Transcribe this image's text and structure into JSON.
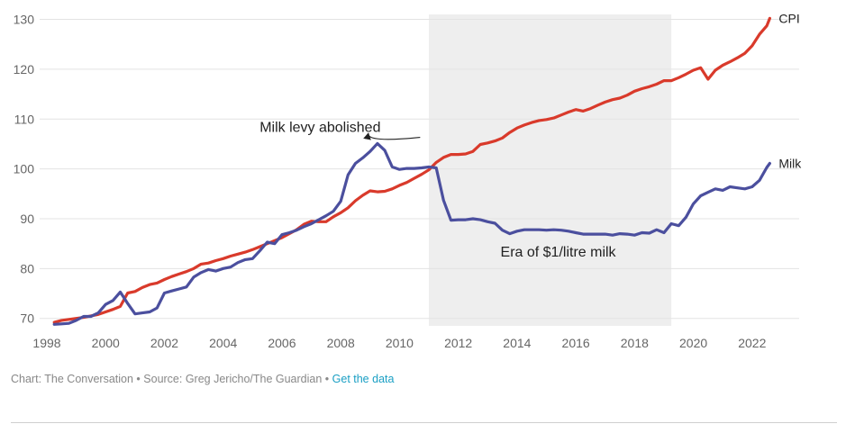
{
  "footer": {
    "credit": "Chart: The Conversation",
    "separator": " • ",
    "source": "Source: Greg Jericho/The Guardian",
    "link": "Get the data"
  },
  "colors": {
    "cpi": "#d93a2b",
    "milk": "#4b4f9e",
    "shade": "#eeeeee",
    "grid": "#e3e3e3"
  },
  "chart_data": {
    "type": "line",
    "x_ticks": [
      1998,
      2000,
      2002,
      2004,
      2006,
      2008,
      2010,
      2012,
      2014,
      2016,
      2018,
      2020,
      2022
    ],
    "y_ticks": [
      70,
      80,
      90,
      100,
      110,
      120,
      130
    ],
    "xlim": [
      1998,
      2023.6
    ],
    "ylim": [
      68.5,
      131
    ],
    "grid": true,
    "shaded_region": {
      "x": [
        2011.0,
        2019.25
      ],
      "label": "Era of $1/litre milk",
      "label_at": [
        2015.4,
        83.5
      ]
    },
    "annotations": [
      {
        "text": "Milk levy abolished",
        "text_at": [
          2007.3,
          108.5
        ],
        "arrow_to": [
          2009.0,
          105.3
        ]
      }
    ],
    "series": [
      {
        "name": "CPI",
        "points": [
          [
            1998.25,
            69.2
          ],
          [
            1998.5,
            69.6
          ],
          [
            1998.75,
            69.8
          ],
          [
            1999.0,
            70.0
          ],
          [
            1999.25,
            70.2
          ],
          [
            1999.5,
            70.5
          ],
          [
            1999.75,
            70.8
          ],
          [
            2000.0,
            71.3
          ],
          [
            2000.25,
            71.8
          ],
          [
            2000.5,
            72.4
          ],
          [
            2000.75,
            75.1
          ],
          [
            2001.0,
            75.4
          ],
          [
            2001.25,
            76.2
          ],
          [
            2001.5,
            76.8
          ],
          [
            2001.75,
            77.1
          ],
          [
            2002.0,
            77.8
          ],
          [
            2002.25,
            78.4
          ],
          [
            2002.5,
            78.9
          ],
          [
            2002.75,
            79.4
          ],
          [
            2003.0,
            80.0
          ],
          [
            2003.25,
            80.9
          ],
          [
            2003.5,
            81.1
          ],
          [
            2003.75,
            81.6
          ],
          [
            2004.0,
            82.0
          ],
          [
            2004.25,
            82.5
          ],
          [
            2004.5,
            82.9
          ],
          [
            2004.75,
            83.3
          ],
          [
            2005.0,
            83.8
          ],
          [
            2005.25,
            84.4
          ],
          [
            2005.5,
            85.0
          ],
          [
            2005.75,
            85.6
          ],
          [
            2006.0,
            86.2
          ],
          [
            2006.25,
            87.0
          ],
          [
            2006.5,
            87.8
          ],
          [
            2006.75,
            88.9
          ],
          [
            2007.0,
            89.5
          ],
          [
            2007.25,
            89.4
          ],
          [
            2007.5,
            89.4
          ],
          [
            2007.75,
            90.4
          ],
          [
            2008.0,
            91.2
          ],
          [
            2008.25,
            92.2
          ],
          [
            2008.5,
            93.6
          ],
          [
            2008.75,
            94.7
          ],
          [
            2009.0,
            95.6
          ],
          [
            2009.25,
            95.4
          ],
          [
            2009.5,
            95.5
          ],
          [
            2009.75,
            96.0
          ],
          [
            2010.0,
            96.7
          ],
          [
            2010.25,
            97.3
          ],
          [
            2010.5,
            98.1
          ],
          [
            2010.75,
            98.9
          ],
          [
            2011.0,
            99.8
          ],
          [
            2011.25,
            101.3
          ],
          [
            2011.5,
            102.3
          ],
          [
            2011.75,
            102.9
          ],
          [
            2012.0,
            102.9
          ],
          [
            2012.25,
            103.0
          ],
          [
            2012.5,
            103.5
          ],
          [
            2012.75,
            104.9
          ],
          [
            2013.0,
            105.2
          ],
          [
            2013.25,
            105.6
          ],
          [
            2013.5,
            106.2
          ],
          [
            2013.75,
            107.3
          ],
          [
            2014.0,
            108.2
          ],
          [
            2014.25,
            108.8
          ],
          [
            2014.5,
            109.3
          ],
          [
            2014.75,
            109.7
          ],
          [
            2015.0,
            109.9
          ],
          [
            2015.25,
            110.2
          ],
          [
            2015.5,
            110.8
          ],
          [
            2015.75,
            111.4
          ],
          [
            2016.0,
            111.9
          ],
          [
            2016.25,
            111.6
          ],
          [
            2016.5,
            112.1
          ],
          [
            2016.75,
            112.8
          ],
          [
            2017.0,
            113.4
          ],
          [
            2017.25,
            113.9
          ],
          [
            2017.5,
            114.2
          ],
          [
            2017.75,
            114.8
          ],
          [
            2018.0,
            115.6
          ],
          [
            2018.25,
            116.1
          ],
          [
            2018.5,
            116.5
          ],
          [
            2018.75,
            117.0
          ],
          [
            2019.0,
            117.7
          ],
          [
            2019.25,
            117.7
          ],
          [
            2019.5,
            118.3
          ],
          [
            2019.75,
            119.0
          ],
          [
            2020.0,
            119.8
          ],
          [
            2020.25,
            120.3
          ],
          [
            2020.5,
            118.0
          ],
          [
            2020.75,
            119.8
          ],
          [
            2021.0,
            120.8
          ],
          [
            2021.25,
            121.5
          ],
          [
            2021.5,
            122.3
          ],
          [
            2021.75,
            123.2
          ],
          [
            2022.0,
            124.7
          ],
          [
            2022.25,
            127.0
          ],
          [
            2022.5,
            128.7
          ],
          [
            2022.6,
            130.2
          ]
        ]
      },
      {
        "name": "Milk",
        "points": [
          [
            1998.25,
            68.8
          ],
          [
            1998.5,
            68.9
          ],
          [
            1998.75,
            69.0
          ],
          [
            1999.0,
            69.6
          ],
          [
            1999.25,
            70.4
          ],
          [
            1999.5,
            70.4
          ],
          [
            1999.75,
            71.1
          ],
          [
            2000.0,
            72.8
          ],
          [
            2000.25,
            73.6
          ],
          [
            2000.5,
            75.3
          ],
          [
            2000.75,
            73.0
          ],
          [
            2001.0,
            70.9
          ],
          [
            2001.25,
            71.1
          ],
          [
            2001.5,
            71.3
          ],
          [
            2001.75,
            72.1
          ],
          [
            2002.0,
            75.1
          ],
          [
            2002.25,
            75.5
          ],
          [
            2002.5,
            75.9
          ],
          [
            2002.75,
            76.3
          ],
          [
            2003.0,
            78.3
          ],
          [
            2003.25,
            79.2
          ],
          [
            2003.5,
            79.8
          ],
          [
            2003.75,
            79.5
          ],
          [
            2004.0,
            80.0
          ],
          [
            2004.25,
            80.3
          ],
          [
            2004.5,
            81.2
          ],
          [
            2004.75,
            81.8
          ],
          [
            2005.0,
            82.0
          ],
          [
            2005.25,
            83.6
          ],
          [
            2005.5,
            85.3
          ],
          [
            2005.75,
            85.0
          ],
          [
            2006.0,
            86.8
          ],
          [
            2006.25,
            87.2
          ],
          [
            2006.5,
            87.7
          ],
          [
            2006.75,
            88.4
          ],
          [
            2007.0,
            89.0
          ],
          [
            2007.25,
            89.8
          ],
          [
            2007.5,
            90.6
          ],
          [
            2007.75,
            91.5
          ],
          [
            2008.0,
            93.5
          ],
          [
            2008.25,
            98.8
          ],
          [
            2008.5,
            101.1
          ],
          [
            2008.75,
            102.2
          ],
          [
            2009.0,
            103.5
          ],
          [
            2009.25,
            105.1
          ],
          [
            2009.5,
            103.7
          ],
          [
            2009.75,
            100.4
          ],
          [
            2010.0,
            99.9
          ],
          [
            2010.25,
            100.1
          ],
          [
            2010.5,
            100.1
          ],
          [
            2010.75,
            100.2
          ],
          [
            2011.0,
            100.4
          ],
          [
            2011.25,
            100.2
          ],
          [
            2011.5,
            93.7
          ],
          [
            2011.75,
            89.7
          ],
          [
            2012.0,
            89.8
          ],
          [
            2012.25,
            89.8
          ],
          [
            2012.5,
            90.0
          ],
          [
            2012.75,
            89.8
          ],
          [
            2013.0,
            89.4
          ],
          [
            2013.25,
            89.1
          ],
          [
            2013.5,
            87.7
          ],
          [
            2013.75,
            87.0
          ],
          [
            2014.0,
            87.5
          ],
          [
            2014.25,
            87.8
          ],
          [
            2014.5,
            87.8
          ],
          [
            2014.75,
            87.8
          ],
          [
            2015.0,
            87.7
          ],
          [
            2015.25,
            87.8
          ],
          [
            2015.5,
            87.7
          ],
          [
            2015.75,
            87.5
          ],
          [
            2016.0,
            87.2
          ],
          [
            2016.25,
            86.9
          ],
          [
            2016.5,
            86.9
          ],
          [
            2016.75,
            86.9
          ],
          [
            2017.0,
            86.9
          ],
          [
            2017.25,
            86.7
          ],
          [
            2017.5,
            87.0
          ],
          [
            2017.75,
            86.9
          ],
          [
            2018.0,
            86.7
          ],
          [
            2018.25,
            87.2
          ],
          [
            2018.5,
            87.1
          ],
          [
            2018.75,
            87.8
          ],
          [
            2019.0,
            87.2
          ],
          [
            2019.25,
            89.0
          ],
          [
            2019.5,
            88.6
          ],
          [
            2019.75,
            90.3
          ],
          [
            2020.0,
            93.0
          ],
          [
            2020.25,
            94.6
          ],
          [
            2020.5,
            95.3
          ],
          [
            2020.75,
            96.0
          ],
          [
            2021.0,
            95.7
          ],
          [
            2021.25,
            96.4
          ],
          [
            2021.5,
            96.2
          ],
          [
            2021.75,
            96.0
          ],
          [
            2022.0,
            96.4
          ],
          [
            2022.25,
            97.7
          ],
          [
            2022.5,
            100.3
          ],
          [
            2022.6,
            101.1
          ]
        ]
      }
    ]
  }
}
